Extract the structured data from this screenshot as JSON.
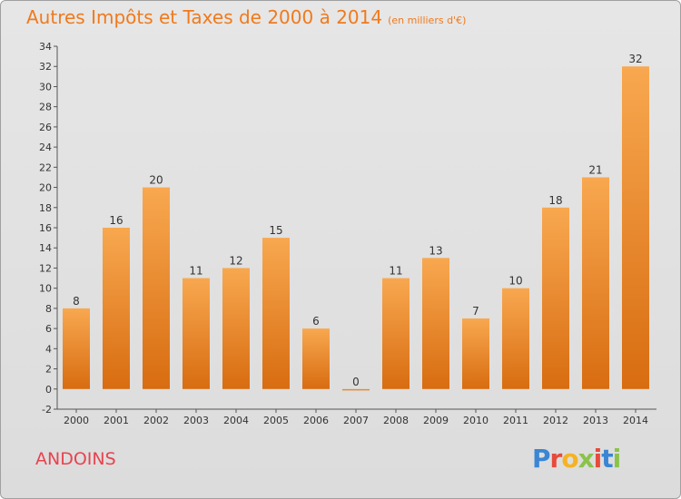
{
  "header": {
    "title": "Autres Impôts et Taxes de 2000 à 2014",
    "unit": "(en milliers d'€)"
  },
  "footer": {
    "commune": "ANDOINS",
    "logo": [
      "P",
      "r",
      "o",
      "x",
      "i",
      "t",
      "i"
    ]
  },
  "colors": {
    "bar_top": "#f8a850",
    "bar_bottom": "#d86c10",
    "title": "#f07a1c",
    "commune": "#e8434f"
  },
  "chart_data": {
    "type": "bar",
    "title": "Autres Impôts et Taxes de 2000 à 2014",
    "subtitle": "(en milliers d'€)",
    "categories": [
      "2000",
      "2001",
      "2002",
      "2003",
      "2004",
      "2005",
      "2006",
      "2007",
      "2008",
      "2009",
      "2010",
      "2011",
      "2012",
      "2013",
      "2014"
    ],
    "values": [
      8,
      16,
      20,
      11,
      12,
      15,
      6,
      0,
      11,
      13,
      7,
      10,
      18,
      21,
      32
    ],
    "ylim": [
      -2,
      34
    ],
    "yticks": [
      -2,
      0,
      2,
      4,
      6,
      8,
      10,
      12,
      14,
      16,
      18,
      20,
      22,
      24,
      26,
      28,
      30,
      32,
      34
    ],
    "grid": false,
    "xlabel": "",
    "ylabel": ""
  }
}
